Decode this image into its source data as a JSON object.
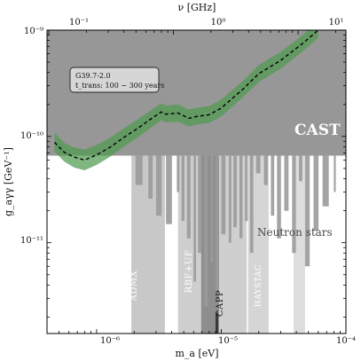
{
  "chart_data": {
    "type": "area",
    "xlabel": "m_a [eV]",
    "ylabel": "g_aγγ [GeV⁻¹]",
    "top_xlabel": "ν [GHz]",
    "xscale": "log",
    "yscale": "log",
    "xlim": [
      4e-07,
      0.0001
    ],
    "ylim": [
      1.4e-12,
      1e-09
    ],
    "top_xlim_ghz": [
      0.0967,
      24.18
    ],
    "x_ticks": [
      {
        "value": 1e-06,
        "label": "10⁻⁶"
      },
      {
        "value": 1e-05,
        "label": "10⁻⁵"
      },
      {
        "value": 0.0001,
        "label": "10⁻⁴"
      }
    ],
    "y_ticks": [
      {
        "value": 1e-09,
        "label": "10⁻⁹"
      },
      {
        "value": 1e-10,
        "label": "10⁻¹⁰"
      },
      {
        "value": 1e-11,
        "label": "10⁻¹¹"
      }
    ],
    "top_ticks": [
      {
        "value": 0.1,
        "label": "10⁻¹"
      },
      {
        "value": 1,
        "label": "10⁰"
      },
      {
        "value": 10,
        "label": "10¹"
      }
    ],
    "cast_limit": 6.6e-11,
    "annotation": {
      "line1": "G39.7-2.0",
      "line2": "t_trans: 100 − 300 years"
    },
    "series": [
      {
        "kind": "band",
        "color": "#4f9a4f",
        "x": [
          4.6e-07,
          5.5e-07,
          6.6e-07,
          8e-07,
          1e-06,
          1.3e-06,
          1.7e-06,
          2.2e-06,
          2.7e-06,
          3.3e-06,
          3.6e-06,
          4.5e-06,
          5.5e-06,
          6.5e-06,
          8e-06,
          1e-05,
          1.5e-05,
          2e-05,
          3e-05,
          4.5e-05,
          6e-05
        ],
        "central": [
          8.8e-11,
          7.1e-11,
          6.4e-11,
          6e-11,
          6.7e-11,
          8e-11,
          1e-10,
          1.22e-10,
          1.45e-10,
          1.7e-10,
          1.62e-10,
          1.66e-10,
          1.48e-10,
          1.55e-10,
          1.6e-10,
          1.85e-10,
          2.8e-10,
          3.9e-10,
          5.2e-10,
          7.5e-10,
          1e-09
        ],
        "low": [
          7.2e-11,
          5.8e-11,
          5.1e-11,
          4.8e-11,
          5.4e-11,
          6.5e-11,
          8.2e-11,
          1e-10,
          1.2e-10,
          1.42e-10,
          1.36e-10,
          1.38e-10,
          1.24e-10,
          1.3e-10,
          1.34e-10,
          1.54e-10,
          2.35e-10,
          3.25e-10,
          4.35e-10,
          6.3e-10,
          8.5e-10
        ],
        "high": [
          1.08e-10,
          8.7e-11,
          7.9e-11,
          7.5e-11,
          8.3e-11,
          9.8e-11,
          1.22e-10,
          1.48e-10,
          1.75e-10,
          2.05e-10,
          1.95e-10,
          2e-10,
          1.79e-10,
          1.87e-10,
          1.93e-10,
          2.22e-10,
          3.35e-10,
          4.7e-10,
          6.25e-10,
          9e-10,
          1.2e-09
        ]
      }
    ],
    "exclusions": [
      {
        "label": "ADMX",
        "x": [
          1.9e-06,
          3.53e-06
        ],
        "g_top": 6.6e-11,
        "g_bottom": 1.4e-12,
        "color": "#c8c8c8"
      },
      {
        "label": "RBF+UF",
        "x": [
          4.5e-06,
          1.6e-05
        ],
        "g_top": 6.6e-11,
        "g_bottom": 1.4e-12,
        "color": "#cfcfcf"
      },
      {
        "label": "CAPP",
        "x": [
          6.9e-06,
          9.6e-06
        ],
        "g_top": 6.6e-11,
        "g_bottom": 1.4e-12,
        "color": "#8e8e8e"
      },
      {
        "label": "HAYSTAC",
        "x": [
          1.64e-05,
          2.4e-05
        ],
        "g_top": 6.6e-11,
        "g_bottom": 1.4e-12,
        "color": "#d5d5d5"
      },
      {
        "label": "QUAX",
        "x": [
          3.8e-05,
          4.7e-05
        ],
        "g_top": 6.6e-11,
        "g_bottom": 1.4e-12,
        "color": "#dddddd"
      }
    ],
    "neutron_stars": {
      "label": "Neutron stars",
      "color": "#9a9a9a",
      "x": [
        2.05e-06,
        2.6e-06,
        3e-06,
        3.6e-06,
        4.4e-06,
        4.8e-06,
        5.3e-06,
        6e-06,
        6.5e-06,
        7.3e-06,
        8.2e-06,
        9e-06,
        1e-05,
        1.15e-05,
        1.25e-05,
        1.4e-05,
        1.55e-05,
        1.7e-05,
        1.9e-05,
        2.2e-05,
        2.5e-05,
        2.8e-05,
        3.2e-05,
        3.7e-05,
        4.2e-05,
        4.7e-05,
        5.5e-05,
        6.5e-05,
        8e-05
      ],
      "g": [
        3.5e-11,
        2.6e-11,
        1.8e-11,
        1.5e-11,
        3e-11,
        1.6e-11,
        1.1e-11,
        4.3e-12,
        8e-12,
        2.5e-12,
        6.5e-12,
        3.5e-12,
        1.2e-11,
        1e-11,
        1.4e-11,
        1.1e-11,
        1.6e-11,
        8e-12,
        4.5e-11,
        3.5e-11,
        1.8e-11,
        1.1e-11,
        2e-11,
        8e-12,
        3.8e-11,
        6e-12,
        1.3e-11,
        2.2e-11,
        3e-11
      ]
    },
    "region_labels": {
      "cast": "CAST",
      "neutron_stars": "Neutron stars"
    }
  }
}
